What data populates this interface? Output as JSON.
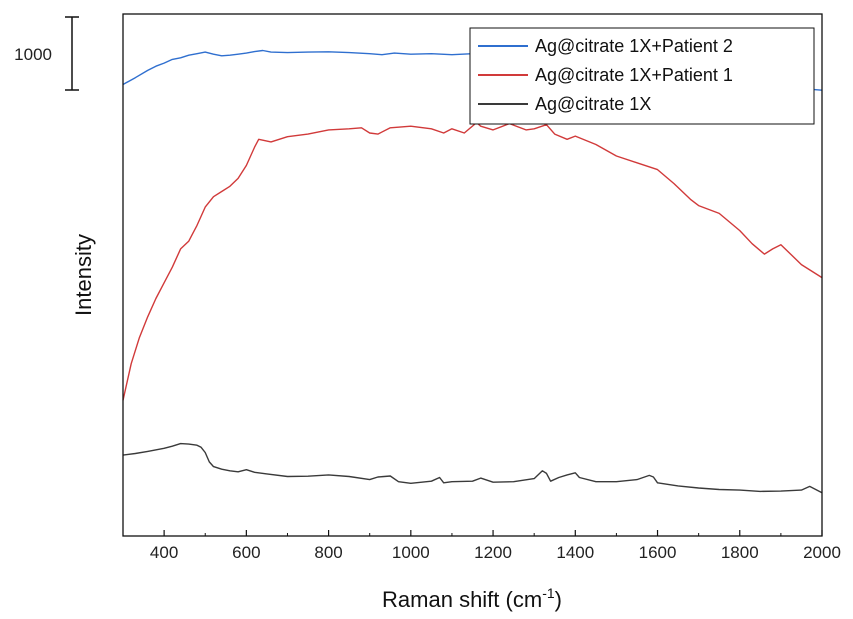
{
  "chart_data": {
    "type": "line",
    "xlabel": "Raman shift (cm",
    "xlabel_superscript": "-1",
    "xlabel_suffix": ")",
    "ylabel": "Intensity",
    "xlim": [
      300,
      2000
    ],
    "xticks": [
      "400",
      "600",
      "800",
      "1000",
      "1200",
      "1400",
      "1600",
      "1800",
      "2000"
    ],
    "ylim": [
      0,
      10000
    ],
    "scale_bar": {
      "label": "1000",
      "value": 1000
    },
    "grid": false,
    "legend_position": "top-right",
    "series": [
      {
        "name": "Ag@citrate 1X+Patient 2",
        "color": "#2f6fcf",
        "x": [
          300,
          330,
          360,
          380,
          400,
          420,
          440,
          460,
          480,
          500,
          520,
          540,
          560,
          580,
          600,
          620,
          640,
          660,
          700,
          750,
          800,
          850,
          900,
          930,
          960,
          1000,
          1050,
          1100,
          1150,
          1170,
          1200,
          1250,
          1300,
          1350,
          1380,
          1400,
          1450,
          1500,
          1530,
          1560,
          1580,
          1600,
          1650,
          1700,
          1750,
          1800,
          1850,
          1880,
          1900,
          1950,
          2000
        ],
        "y": [
          8650,
          8780,
          8920,
          9000,
          9060,
          9130,
          9160,
          9210,
          9240,
          9270,
          9230,
          9200,
          9210,
          9230,
          9250,
          9280,
          9300,
          9270,
          9260,
          9270,
          9275,
          9260,
          9240,
          9220,
          9250,
          9230,
          9240,
          9220,
          9240,
          9260,
          9240,
          9230,
          9240,
          9250,
          9220,
          9200,
          9170,
          9110,
          9090,
          9140,
          9160,
          9110,
          8980,
          8820,
          8720,
          8640,
          8590,
          8620,
          8610,
          8570,
          8540
        ]
      },
      {
        "name": "Ag@citrate 1X+Patient 1",
        "color": "#d13a3a",
        "x": [
          300,
          320,
          340,
          360,
          380,
          400,
          420,
          440,
          460,
          470,
          480,
          500,
          520,
          540,
          560,
          580,
          600,
          620,
          630,
          660,
          700,
          750,
          800,
          850,
          880,
          900,
          920,
          950,
          1000,
          1050,
          1080,
          1100,
          1130,
          1160,
          1170,
          1200,
          1240,
          1280,
          1300,
          1330,
          1350,
          1380,
          1400,
          1450,
          1500,
          1550,
          1600,
          1640,
          1680,
          1700,
          1750,
          1800,
          1830,
          1860,
          1880,
          1900,
          1950,
          2000
        ],
        "y": [
          2600,
          3300,
          3800,
          4200,
          4550,
          4850,
          5150,
          5500,
          5650,
          5800,
          5950,
          6300,
          6500,
          6600,
          6700,
          6850,
          7100,
          7450,
          7600,
          7550,
          7650,
          7700,
          7780,
          7800,
          7820,
          7720,
          7700,
          7820,
          7850,
          7800,
          7720,
          7800,
          7720,
          7920,
          7850,
          7780,
          7900,
          7780,
          7800,
          7880,
          7700,
          7600,
          7660,
          7500,
          7280,
          7150,
          7020,
          6750,
          6450,
          6330,
          6180,
          5850,
          5600,
          5400,
          5500,
          5580,
          5200,
          4950
        ]
      },
      {
        "name": "Ag@citrate 1X",
        "color": "#3a3a3a",
        "x": [
          300,
          330,
          360,
          400,
          420,
          440,
          460,
          480,
          490,
          500,
          510,
          520,
          540,
          560,
          580,
          600,
          620,
          650,
          700,
          750,
          800,
          850,
          900,
          920,
          950,
          970,
          1000,
          1050,
          1070,
          1080,
          1100,
          1150,
          1170,
          1200,
          1250,
          1300,
          1320,
          1330,
          1340,
          1360,
          1380,
          1400,
          1410,
          1450,
          1500,
          1550,
          1580,
          1590,
          1600,
          1650,
          1700,
          1750,
          1800,
          1850,
          1900,
          1950,
          1970,
          2000
        ],
        "y": [
          1550,
          1580,
          1620,
          1680,
          1720,
          1770,
          1760,
          1740,
          1700,
          1600,
          1420,
          1330,
          1280,
          1250,
          1230,
          1270,
          1220,
          1190,
          1140,
          1145,
          1170,
          1140,
          1080,
          1130,
          1150,
          1040,
          1010,
          1050,
          1120,
          1020,
          1040,
          1050,
          1110,
          1030,
          1040,
          1100,
          1250,
          1200,
          1050,
          1120,
          1170,
          1210,
          1120,
          1040,
          1040,
          1080,
          1160,
          1130,
          1020,
          960,
          920,
          890,
          880,
          855,
          860,
          880,
          950,
          830
        ]
      }
    ]
  }
}
